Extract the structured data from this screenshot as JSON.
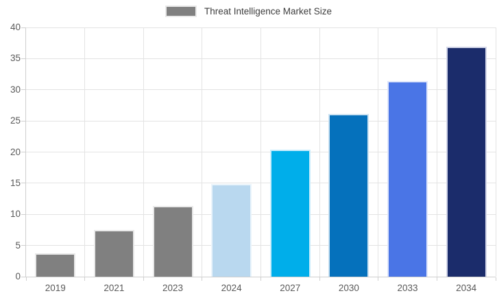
{
  "legend": {
    "label": "Threat Intelligence Market Size",
    "swatch_color": "#808080"
  },
  "chart_data": {
    "type": "bar",
    "title": "Threat Intelligence Market Size",
    "categories": [
      "2019",
      "2021",
      "2023",
      "2024",
      "2027",
      "2030",
      "2033",
      "2034"
    ],
    "values": [
      3.8,
      7.5,
      11.3,
      14.9,
      20.4,
      26.1,
      31.4,
      36.9
    ],
    "series": [
      {
        "name": "Threat Intelligence Market Size",
        "values": [
          3.8,
          7.5,
          11.3,
          14.9,
          20.4,
          26.1,
          31.4,
          36.9
        ]
      }
    ],
    "bar_colors": [
      "#808080",
      "#808080",
      "#808080",
      "#b9d8ef",
      "#00aeea",
      "#0571bc",
      "#4a75e6",
      "#1b2c6b"
    ],
    "bar_border_colors": [
      "#e9e9e9",
      "#e9e9e9",
      "#e9e9e9",
      "#eaf4fb",
      "#cbedfb",
      "#cde3f2",
      "#dfe6fb",
      "#d4d7e9"
    ],
    "xlabel": "",
    "ylabel": "",
    "ylim": [
      0,
      40
    ],
    "yticks": [
      0,
      5,
      10,
      15,
      20,
      25,
      30,
      35,
      40
    ],
    "grid": true,
    "legend_position": "top",
    "style": {
      "grid_color": "#e3e3e3",
      "axis_color": "#cfcfcf",
      "tick_label_color": "#595959",
      "legend_text_color": "#3c3c3c",
      "background": "#ffffff"
    }
  }
}
